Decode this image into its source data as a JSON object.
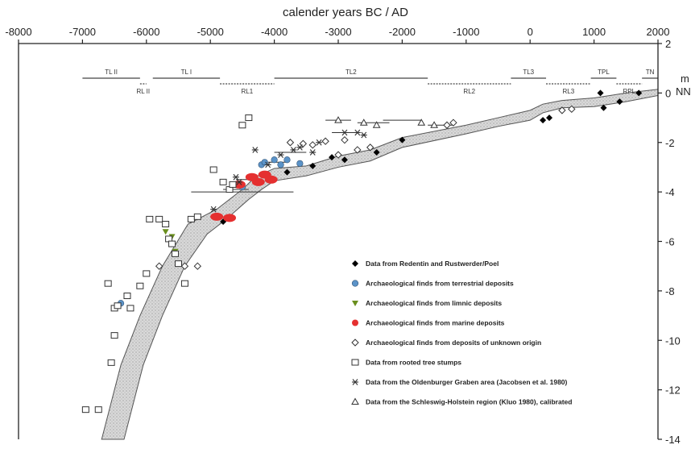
{
  "chart_data": {
    "type": "scatter",
    "title": "calender years BC / AD",
    "xlabel": "calender years BC / AD",
    "ylabel": "m NN",
    "xlim": [
      -8000,
      2000
    ],
    "ylim": [
      -14,
      2
    ],
    "x_ticks": [
      -8000,
      -7000,
      -6000,
      -5000,
      -4000,
      -3000,
      -2000,
      -1000,
      0,
      1000,
      2000
    ],
    "y_ticks": [
      2,
      0,
      -2,
      -4,
      -6,
      -8,
      -10,
      -12,
      -14
    ],
    "periods_top": [
      {
        "label": "TL II",
        "from": -7000,
        "to": -6100,
        "style": "solid"
      },
      {
        "label": "TL I",
        "from": -5900,
        "to": -4850,
        "style": "solid"
      },
      {
        "label": "TL2",
        "from": -4000,
        "to": -1600,
        "style": "solid"
      },
      {
        "label": "TL3",
        "from": -300,
        "to": 250,
        "style": "solid"
      },
      {
        "label": "TPL",
        "from": 950,
        "to": 1350,
        "style": "solid"
      },
      {
        "label": "TN",
        "from": 1750,
        "to": 2000,
        "style": "solid"
      }
    ],
    "periods_bottom": [
      {
        "label": "RL II",
        "from": -6100,
        "to": -6000,
        "style": "dashed"
      },
      {
        "label": "RL1",
        "from": -4850,
        "to": -4000,
        "style": "dashed"
      },
      {
        "label": "RL2",
        "from": -1600,
        "to": -300,
        "style": "dashed"
      },
      {
        "label": "RL3",
        "from": 250,
        "to": 950,
        "style": "dashed"
      },
      {
        "label": "RPL",
        "from": 1350,
        "to": 1750,
        "style": "dashed"
      }
    ],
    "band": {
      "upper": [
        [
          -6700,
          -14
        ],
        [
          -6400,
          -11
        ],
        [
          -6100,
          -9
        ],
        [
          -5750,
          -7
        ],
        [
          -5350,
          -5.3
        ],
        [
          -4900,
          -4.7
        ],
        [
          -4500,
          -3.9
        ],
        [
          -4300,
          -3.4
        ],
        [
          -4000,
          -3.05
        ],
        [
          -3500,
          -2.95
        ],
        [
          -3000,
          -2.55
        ],
        [
          -2500,
          -2.3
        ],
        [
          -2000,
          -1.8
        ],
        [
          -1000,
          -1.3
        ],
        [
          -500,
          -1.0
        ],
        [
          0,
          -0.7
        ],
        [
          200,
          -0.45
        ],
        [
          500,
          -0.3
        ],
        [
          1000,
          -0.2
        ],
        [
          1500,
          0.0
        ],
        [
          2000,
          0.15
        ]
      ],
      "lower": [
        [
          -6350,
          -14
        ],
        [
          -6050,
          -11
        ],
        [
          -5750,
          -9
        ],
        [
          -5400,
          -7
        ],
        [
          -5050,
          -5.7
        ],
        [
          -4750,
          -5.1
        ],
        [
          -4400,
          -4.3
        ],
        [
          -4200,
          -3.9
        ],
        [
          -4000,
          -3.55
        ],
        [
          -3500,
          -3.35
        ],
        [
          -3000,
          -3.0
        ],
        [
          -2500,
          -2.75
        ],
        [
          -2000,
          -2.2
        ],
        [
          -1000,
          -1.65
        ],
        [
          -500,
          -1.35
        ],
        [
          0,
          -1.1
        ],
        [
          200,
          -0.8
        ],
        [
          500,
          -0.6
        ],
        [
          1000,
          -0.55
        ],
        [
          1500,
          -0.35
        ],
        [
          2000,
          -0.1
        ]
      ]
    },
    "series": [
      {
        "name": "Data from Redentin and Rustwerder/Poel",
        "marker": "filled-diamond",
        "color": "#000000",
        "points": [
          [
            -4800,
            -5.2
          ],
          [
            -3800,
            -3.2
          ],
          [
            -3400,
            -2.95
          ],
          [
            -3100,
            -2.6
          ],
          [
            -2900,
            -2.7
          ],
          [
            -2400,
            -2.4
          ],
          [
            -2000,
            -1.9
          ],
          [
            300,
            -1.0
          ],
          [
            200,
            -1.1
          ],
          [
            1100,
            0.0
          ],
          [
            1150,
            -0.6
          ],
          [
            1400,
            -0.35
          ],
          [
            1700,
            0.0
          ]
        ]
      },
      {
        "name": "Archaeological finds from terrestrial deposits",
        "marker": "filled-circle",
        "color": "#5b93c8",
        "points": [
          [
            -6400,
            -8.5
          ],
          [
            -4500,
            -3.8
          ],
          [
            -4200,
            -2.9
          ],
          [
            -4150,
            -2.8
          ],
          [
            -4000,
            -2.7
          ],
          [
            -3900,
            -2.9
          ],
          [
            -3800,
            -2.7
          ],
          [
            -3600,
            -2.85
          ]
        ]
      },
      {
        "name": "Archaeological finds from limnic deposits",
        "marker": "filled-triangle-down",
        "color": "#6a8f1e",
        "points": [
          [
            -5700,
            -5.6
          ],
          [
            -5600,
            -5.8
          ],
          [
            -5550,
            -6.4
          ]
        ]
      },
      {
        "name": "Archaeological finds from marine deposits",
        "marker": "filled-blob",
        "color": "#e53030",
        "points": [
          [
            -4900,
            -5.0
          ],
          [
            -4700,
            -5.05
          ],
          [
            -4350,
            -3.4
          ],
          [
            -4250,
            -3.6
          ],
          [
            -4150,
            -3.3
          ],
          [
            -4050,
            -3.5
          ],
          [
            -4550,
            -3.7
          ]
        ]
      },
      {
        "name": "Archaeological finds from deposits of unknown origin",
        "marker": "open-diamond",
        "color": "#333333",
        "points": [
          [
            -5800,
            -7.0
          ],
          [
            -5400,
            -7.0
          ],
          [
            -5200,
            -7.0
          ],
          [
            -3750,
            -2.0
          ],
          [
            -3550,
            -2.05
          ],
          [
            -3400,
            -2.1
          ],
          [
            -3200,
            -1.95
          ],
          [
            -3000,
            -2.5
          ],
          [
            -2900,
            -1.9
          ],
          [
            -2700,
            -2.3
          ],
          [
            -2500,
            -2.2
          ],
          [
            -1300,
            -1.3
          ],
          [
            -1200,
            -1.2
          ],
          [
            500,
            -0.7
          ],
          [
            650,
            -0.65
          ]
        ]
      },
      {
        "name": "Data from rooted tree stumps",
        "marker": "open-square",
        "color": "#333333",
        "points": [
          [
            -6950,
            -12.8
          ],
          [
            -6750,
            -12.8
          ],
          [
            -6550,
            -10.9
          ],
          [
            -6500,
            -9.8
          ],
          [
            -6600,
            -7.7
          ],
          [
            -6500,
            -8.7
          ],
          [
            -6450,
            -8.6
          ],
          [
            -6300,
            -8.2
          ],
          [
            -6250,
            -8.7
          ],
          [
            -6100,
            -7.8
          ],
          [
            -6000,
            -7.3
          ],
          [
            -5950,
            -5.1
          ],
          [
            -5800,
            -5.1
          ],
          [
            -5700,
            -5.3
          ],
          [
            -5650,
            -5.9
          ],
          [
            -5600,
            -6.1
          ],
          [
            -5550,
            -6.5
          ],
          [
            -5500,
            -6.9
          ],
          [
            -5400,
            -7.7
          ],
          [
            -5300,
            -5.1
          ],
          [
            -5200,
            -5.0
          ],
          [
            -4950,
            -3.1
          ],
          [
            -4800,
            -3.6
          ],
          [
            -4700,
            -3.9
          ],
          [
            -4650,
            -3.7
          ],
          [
            -4500,
            -1.3
          ],
          [
            -4400,
            -1.0
          ]
        ]
      },
      {
        "name": "Data from the Oldenburger Graben area (Jacobsen et al. 1980)",
        "marker": "star",
        "color": "#333333",
        "points": [
          [
            -4950,
            -4.7
          ],
          [
            -4600,
            -3.4
          ],
          [
            -4550,
            -3.6
          ],
          [
            -4300,
            -2.3
          ],
          [
            -4100,
            -2.9
          ],
          [
            -3900,
            -2.5
          ],
          [
            -3700,
            -2.3
          ],
          [
            -3600,
            -2.2
          ],
          [
            -3400,
            -2.4
          ],
          [
            -3300,
            -2.0
          ],
          [
            -2900,
            -1.6
          ],
          [
            -2700,
            -1.6
          ],
          [
            -2600,
            -1.7
          ]
        ]
      },
      {
        "name": "Data from the Schleswig-Holstein region (Kluo 1980), calibrated",
        "marker": "open-triangle",
        "color": "#333333",
        "points": [
          [
            -3000,
            -1.1
          ],
          [
            -2600,
            -1.2
          ],
          [
            -2400,
            -1.3
          ],
          [
            -1700,
            -1.2
          ],
          [
            -1500,
            -1.3
          ]
        ]
      }
    ],
    "error_bars_x": [
      {
        "y": -4.0,
        "from": -5300,
        "to": -3700
      },
      {
        "y": -3.9,
        "from": -4800,
        "to": -4400
      },
      {
        "y": -3.5,
        "from": -4600,
        "to": -4300
      },
      {
        "y": -2.8,
        "from": -4200,
        "to": -3800
      },
      {
        "y": -2.4,
        "from": -4000,
        "to": -3500
      },
      {
        "y": -1.1,
        "from": -3200,
        "to": -2800
      },
      {
        "y": -1.1,
        "from": -2300,
        "to": -1700
      },
      {
        "y": -1.2,
        "from": -2700,
        "to": -2200
      },
      {
        "y": -1.6,
        "from": -3100,
        "to": -2700
      },
      {
        "y": -1.3,
        "from": -1600,
        "to": -1200
      }
    ],
    "legend_placement": "lower-right"
  }
}
